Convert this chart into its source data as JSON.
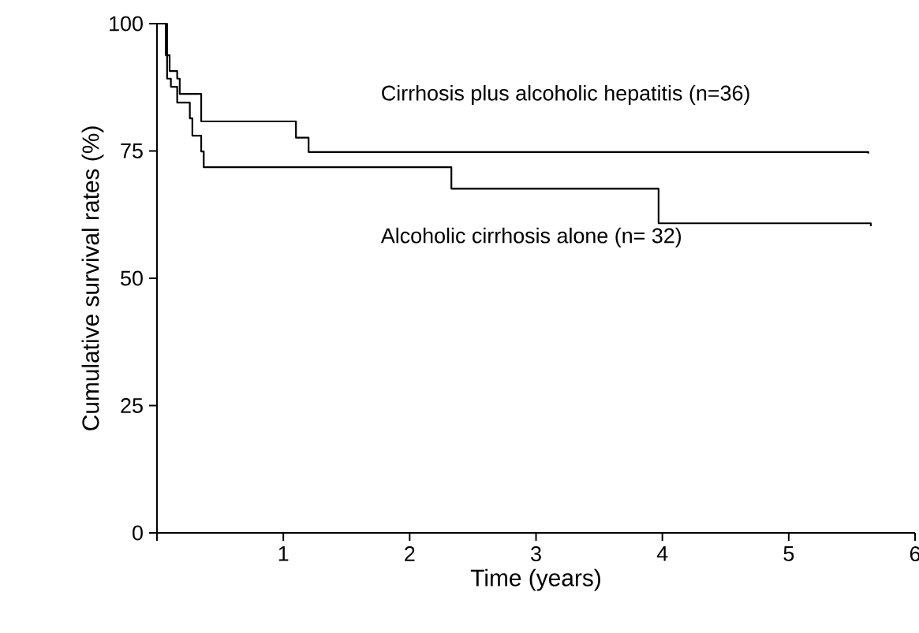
{
  "chart_data": {
    "type": "step",
    "xlabel": "Time (years)",
    "ylabel": "Cumulative survival rates (%)",
    "series": [
      {
        "color": "#000000",
        "x": [
          0,
          0.07,
          0.1,
          0.16,
          0.18,
          0.35,
          1.1,
          1.2,
          5.63
        ],
        "values": [
          100,
          93.8,
          90.7,
          89.2,
          86.2,
          80.8,
          77.6,
          74.8,
          74.5
        ]
      },
      {
        "color": "#000000",
        "x": [
          0,
          0.08,
          0.11,
          0.16,
          0.26,
          0.28,
          0.35,
          0.37,
          2.33,
          3.97,
          5.65
        ],
        "values": [
          100,
          89.2,
          87.6,
          84.5,
          81.4,
          78.0,
          74.9,
          71.8,
          67.6,
          60.8,
          60.2
        ]
      }
    ],
    "annotations": [
      "Cirrhosis plus alcoholic hepatitis (n=36)",
      "Alcoholic cirrhosis alone (n= 32)"
    ],
    "xlim": [
      0,
      6
    ],
    "ylim": [
      0,
      100
    ],
    "xticks": [
      {
        "value": 0,
        "label": null
      },
      1,
      2,
      3,
      4,
      5,
      6
    ],
    "yticks": [
      0,
      25,
      50,
      75,
      100
    ],
    "grid": false,
    "marker": "none",
    "line_style": "solid"
  }
}
